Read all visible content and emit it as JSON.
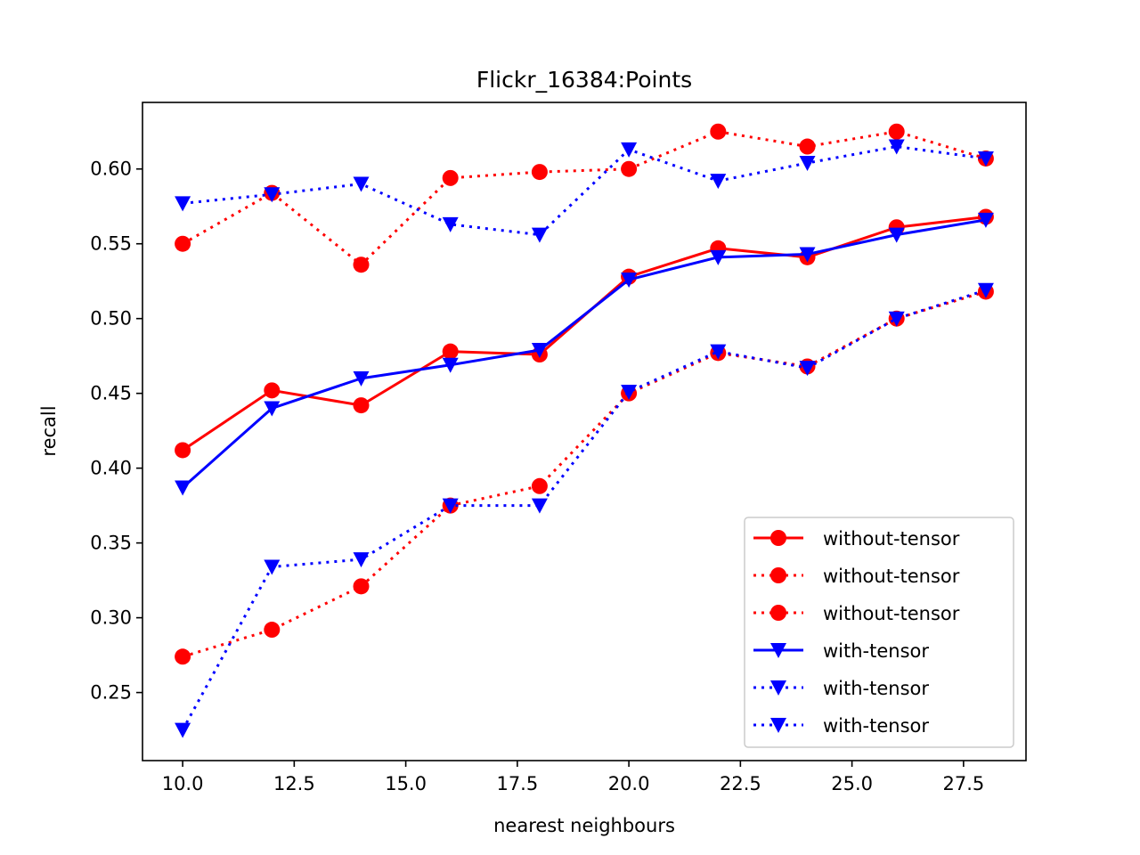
{
  "chart_data": {
    "type": "line",
    "title": "Flickr_16384:Points",
    "xlabel": "nearest neighbours",
    "ylabel": "recall",
    "xlim": [
      9.1,
      28.9
    ],
    "ylim": [
      0.2045,
      0.6445
    ],
    "x_ticks": [
      {
        "value": 10.0,
        "label": "10.0"
      },
      {
        "value": 12.5,
        "label": "12.5"
      },
      {
        "value": 15.0,
        "label": "15.0"
      },
      {
        "value": 17.5,
        "label": "17.5"
      },
      {
        "value": 20.0,
        "label": "20.0"
      },
      {
        "value": 22.5,
        "label": "22.5"
      },
      {
        "value": 25.0,
        "label": "25.0"
      },
      {
        "value": 27.5,
        "label": "27.5"
      }
    ],
    "y_ticks": [
      {
        "value": 0.25,
        "label": "0.25"
      },
      {
        "value": 0.3,
        "label": "0.30"
      },
      {
        "value": 0.35,
        "label": "0.35"
      },
      {
        "value": 0.4,
        "label": "0.40"
      },
      {
        "value": 0.45,
        "label": "0.45"
      },
      {
        "value": 0.5,
        "label": "0.50"
      },
      {
        "value": 0.55,
        "label": "0.55"
      },
      {
        "value": 0.6,
        "label": "0.60"
      }
    ],
    "grid": false,
    "legend_position": "lower-right",
    "x": [
      10,
      12,
      14,
      16,
      18,
      20,
      22,
      24,
      26,
      28
    ],
    "series": [
      {
        "name": "without-tensor",
        "color": "#ff0000",
        "line_style": "solid",
        "marker": "circle",
        "values": [
          0.412,
          0.452,
          0.442,
          0.478,
          0.476,
          0.528,
          0.547,
          0.541,
          0.561,
          0.568
        ]
      },
      {
        "name": "without-tensor",
        "color": "#ff0000",
        "line_style": "dotted",
        "marker": "circle",
        "values": [
          0.55,
          0.584,
          0.536,
          0.594,
          0.598,
          0.6,
          0.625,
          0.615,
          0.625,
          0.607
        ]
      },
      {
        "name": "without-tensor",
        "color": "#ff0000",
        "line_style": "dotted",
        "marker": "circle",
        "values": [
          0.274,
          0.292,
          0.321,
          0.375,
          0.388,
          0.45,
          0.477,
          0.468,
          0.5,
          0.518
        ]
      },
      {
        "name": "with-tensor",
        "color": "#0000ff",
        "line_style": "solid",
        "marker": "triangle-down",
        "values": [
          0.387,
          0.44,
          0.46,
          0.469,
          0.479,
          0.526,
          0.541,
          0.543,
          0.556,
          0.566
        ]
      },
      {
        "name": "with-tensor",
        "color": "#0000ff",
        "line_style": "dotted",
        "marker": "triangle-down",
        "values": [
          0.577,
          0.583,
          0.59,
          0.563,
          0.556,
          0.613,
          0.592,
          0.604,
          0.615,
          0.607
        ]
      },
      {
        "name": "with-tensor",
        "color": "#0000ff",
        "line_style": "dotted",
        "marker": "triangle-down",
        "values": [
          0.225,
          0.334,
          0.339,
          0.375,
          0.375,
          0.451,
          0.478,
          0.467,
          0.5,
          0.519
        ]
      }
    ]
  }
}
